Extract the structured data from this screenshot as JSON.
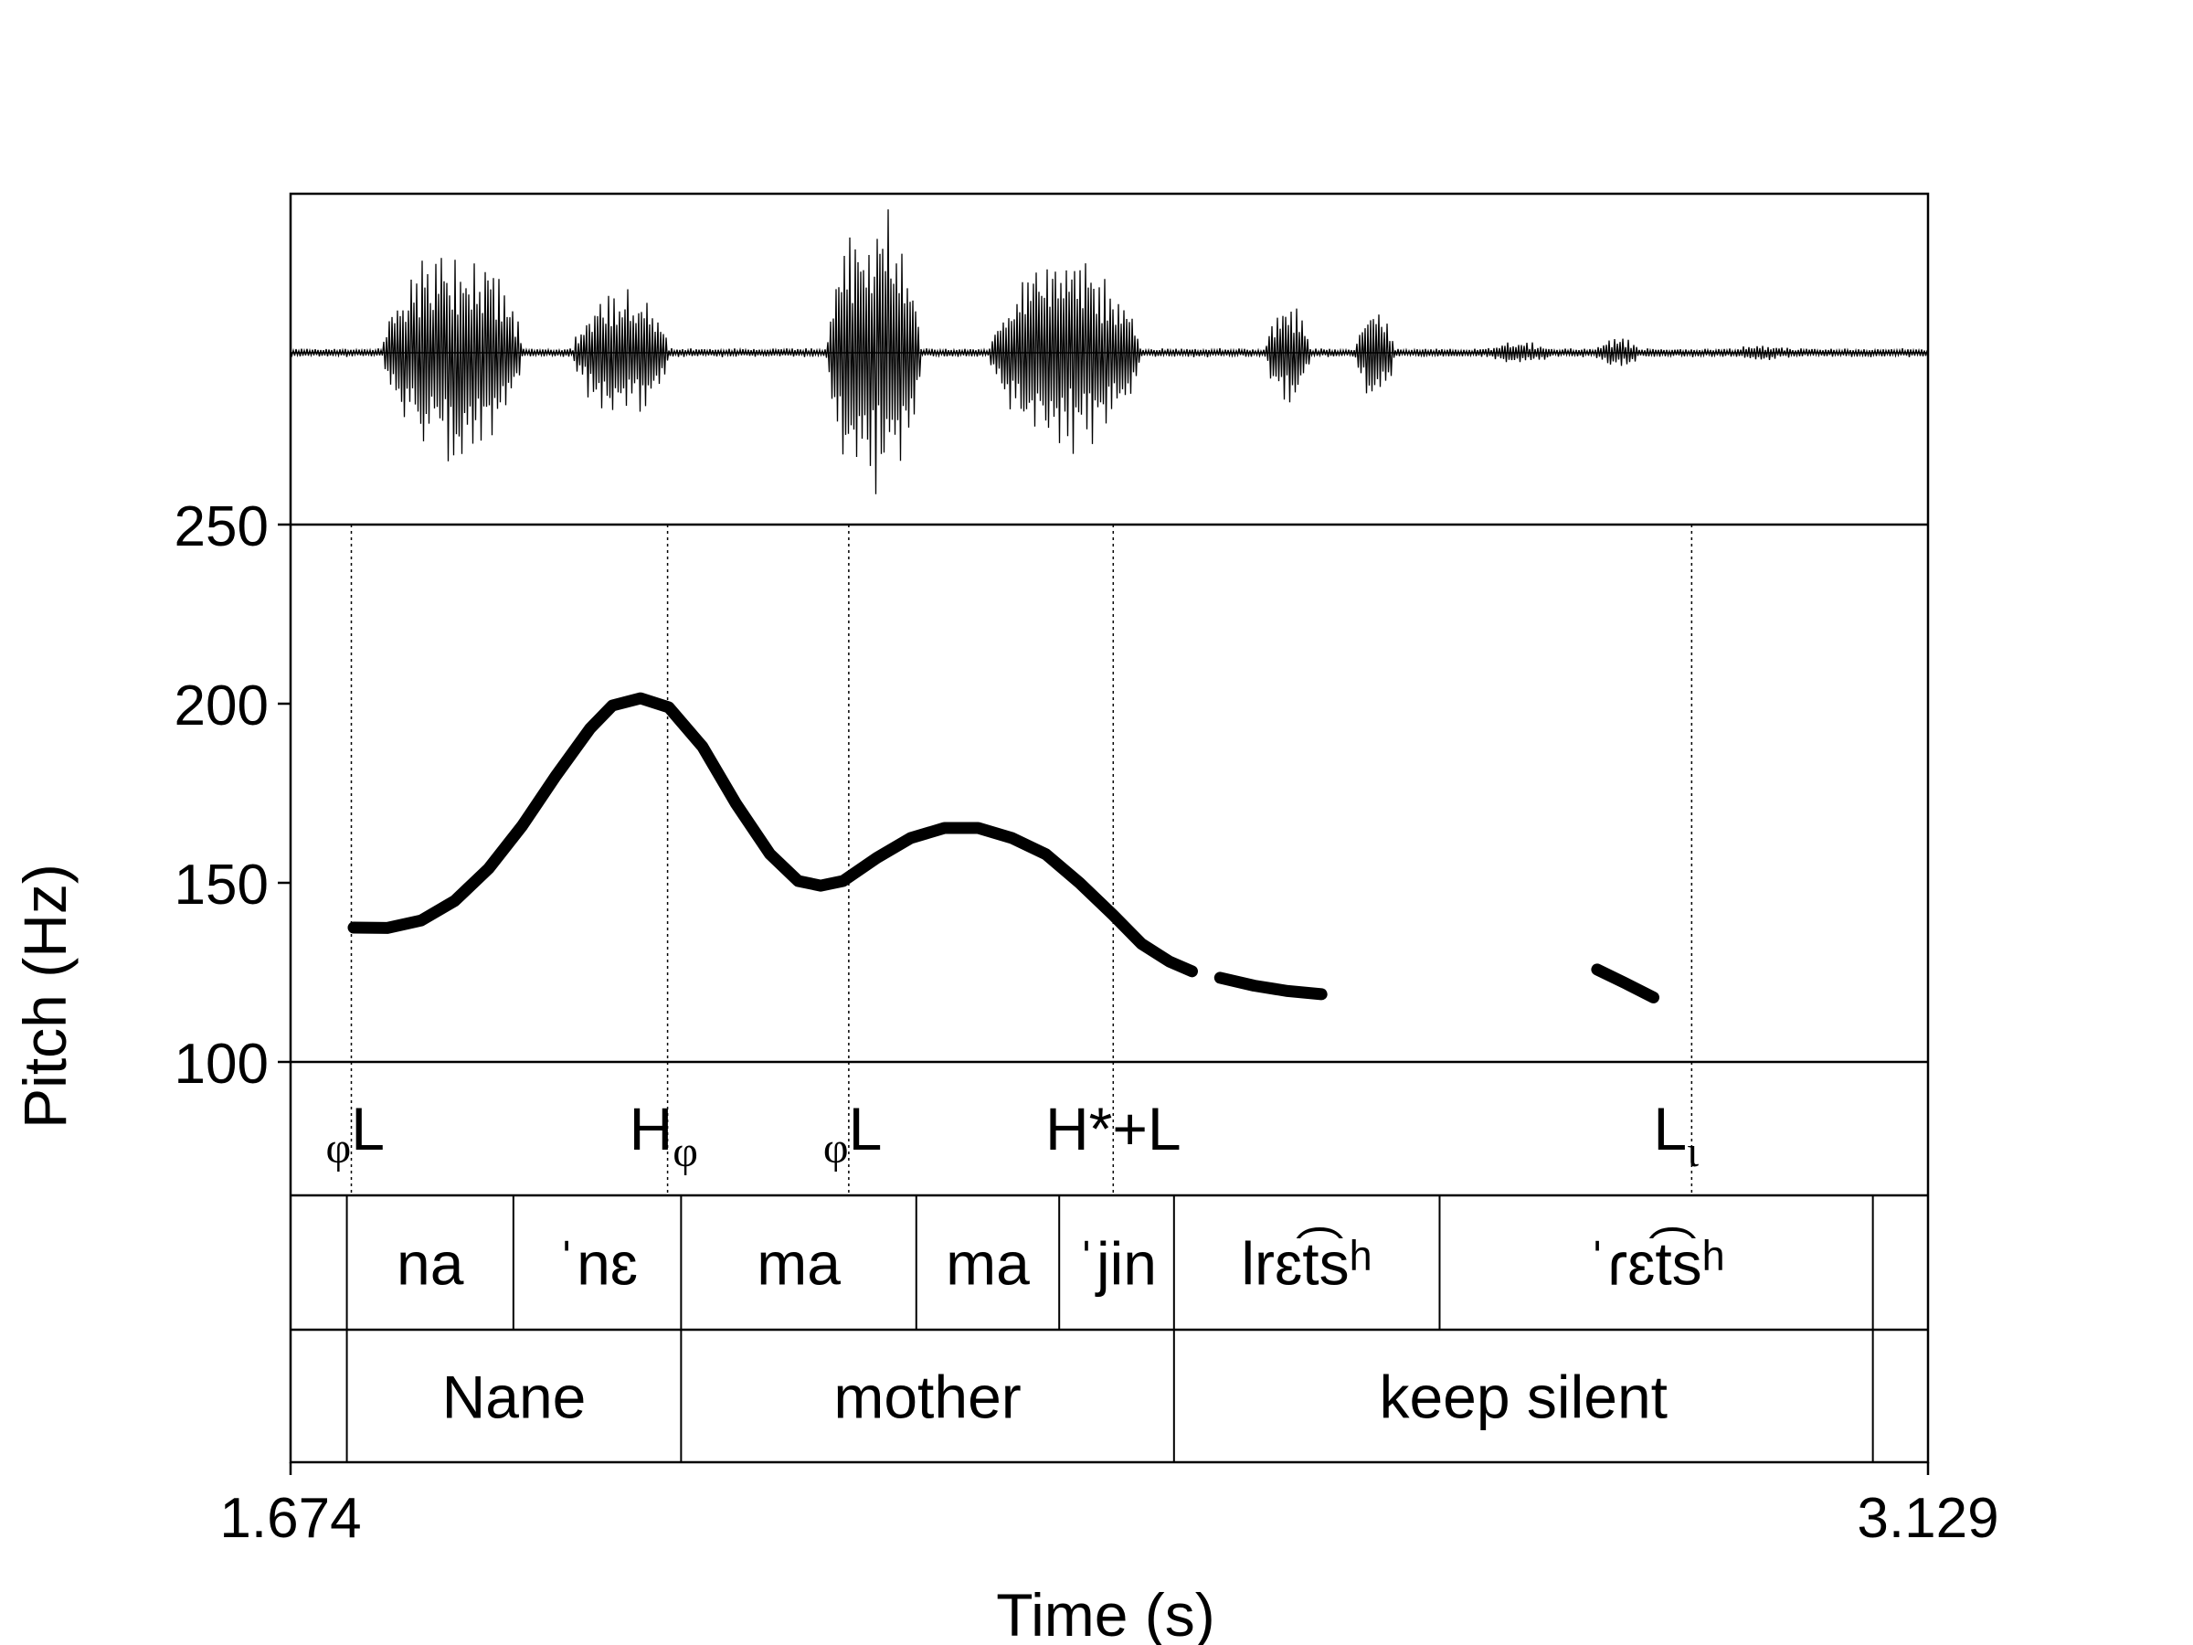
{
  "chart_data": {
    "type": "line",
    "xlabel": "Time (s)",
    "ylabel": "Pitch (Hz)",
    "xlim": [
      1.674,
      3.129
    ],
    "ylim": [
      100,
      250
    ],
    "x_tick_labels": [
      "1.674",
      "3.129"
    ],
    "y_ticks": [
      100,
      150,
      200,
      250
    ],
    "grid": false,
    "waveform": {
      "shown": true
    },
    "pitch_segments": [
      [
        [
          1.73,
          137.5
        ],
        [
          1.76,
          137.4
        ],
        [
          1.79,
          139.5
        ],
        [
          1.82,
          145
        ],
        [
          1.85,
          154
        ],
        [
          1.88,
          166
        ],
        [
          1.91,
          180
        ],
        [
          1.94,
          193
        ],
        [
          1.96,
          199.5
        ],
        [
          1.985,
          201.5
        ],
        [
          2.01,
          199
        ],
        [
          2.04,
          188
        ],
        [
          2.07,
          172
        ],
        [
          2.1,
          158
        ],
        [
          2.125,
          150.5
        ],
        [
          2.145,
          149.2
        ],
        [
          2.165,
          150.5
        ],
        [
          2.195,
          157
        ],
        [
          2.225,
          162.5
        ],
        [
          2.255,
          165.3
        ],
        [
          2.285,
          165.3
        ],
        [
          2.315,
          162.5
        ],
        [
          2.345,
          158
        ],
        [
          2.375,
          150
        ],
        [
          2.405,
          141
        ],
        [
          2.43,
          133
        ],
        [
          2.455,
          128
        ],
        [
          2.475,
          125.3
        ]
      ],
      [
        [
          2.5,
          123.5
        ],
        [
          2.53,
          121.3
        ],
        [
          2.56,
          119.8
        ],
        [
          2.59,
          118.9
        ]
      ],
      [
        [
          2.835,
          125.8
        ],
        [
          2.86,
          122
        ],
        [
          2.885,
          118
        ]
      ]
    ],
    "tone_labels": [
      {
        "time": 1.728,
        "pre": "φ",
        "base": "L",
        "sub": ""
      },
      {
        "time": 2.009,
        "pre": "",
        "base": "H",
        "sub": "φ"
      },
      {
        "time": 2.17,
        "pre": "φ",
        "base": "L",
        "sub": ""
      },
      {
        "time": 2.405,
        "pre": "",
        "base": "H*+L",
        "sub": ""
      },
      {
        "time": 2.919,
        "pre": "",
        "base": "L",
        "sub": "ι"
      }
    ],
    "syllables": [
      {
        "start": 1.674,
        "end": 1.724,
        "label": ""
      },
      {
        "start": 1.724,
        "end": 1.872,
        "label": "na"
      },
      {
        "start": 1.872,
        "end": 2.021,
        "label": "ˈnɛ"
      },
      {
        "start": 2.021,
        "end": 2.23,
        "label": "ma"
      },
      {
        "start": 2.23,
        "end": 2.357,
        "label": "ma"
      },
      {
        "start": 2.357,
        "end": 2.459,
        "label": "ˈjin"
      },
      {
        "start": 2.459,
        "end": 2.695,
        "label": "lrɛt͡sʰ"
      },
      {
        "start": 2.695,
        "end": 3.08,
        "label": "ˈɾɛt͡sʰ"
      },
      {
        "start": 3.08,
        "end": 3.129,
        "label": ""
      }
    ],
    "words": [
      {
        "start": 1.674,
        "end": 1.724,
        "label": ""
      },
      {
        "start": 1.724,
        "end": 2.021,
        "label": "Nane"
      },
      {
        "start": 2.021,
        "end": 2.459,
        "label": "mother"
      },
      {
        "start": 2.459,
        "end": 3.08,
        "label": "keep silent"
      },
      {
        "start": 3.08,
        "end": 3.129,
        "label": ""
      }
    ]
  }
}
